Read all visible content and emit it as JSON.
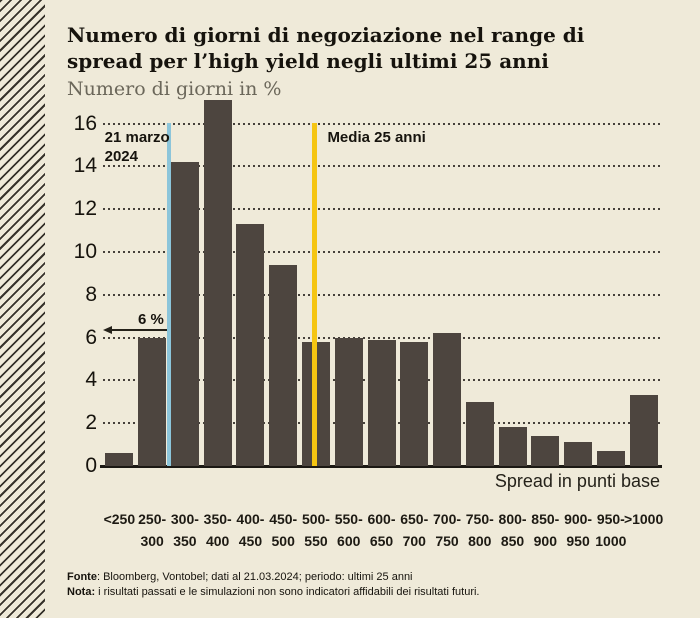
{
  "header": {
    "title_lines": [
      "Numero di giorni di negoziazione nel range di",
      "spread per l’high yield negli ultimi 25 anni"
    ],
    "subtitle": "Numero di giorni in %"
  },
  "chart_data": {
    "type": "bar",
    "title": "Numero di giorni di negoziazione nel range di spread per l’high yield negli ultimi 25 anni",
    "ylabel": "Numero di giorni in %",
    "xlabel": "Spread in punti base",
    "categories": [
      "<250",
      "250-\n300",
      "300-\n350",
      "350-\n400",
      "400-\n450",
      "450-\n500",
      "500-\n550",
      "550-\n600",
      "600-\n650",
      "650-\n700",
      "700-\n750",
      "750-\n800",
      "800-\n850",
      "850-\n900",
      "900-\n950",
      "950-\n1000",
      ">1000"
    ],
    "values": [
      0.6,
      6.0,
      14.2,
      17.1,
      11.3,
      9.4,
      5.8,
      6.0,
      5.9,
      5.8,
      6.2,
      3.0,
      1.8,
      1.4,
      1.1,
      0.7,
      3.3
    ],
    "ylim": [
      0,
      17.5
    ],
    "yticks": [
      0,
      2,
      4,
      6,
      8,
      10,
      12,
      14,
      16
    ],
    "grid": "horizontal-dotted",
    "legend_position": "none",
    "bar_color": "#4d453f",
    "background_color": "#efead9",
    "annotations": [
      {
        "id": "blue-date-line",
        "type": "vline",
        "label": "21 marzo\n2024",
        "position_slots": 2.0,
        "label_x_slots": 0.05,
        "color": "#8cc5da",
        "line_width": 4
      },
      {
        "id": "yellow-mean-line",
        "type": "vline",
        "label": "Media 25 anni",
        "position_slots": 6.47,
        "label_x_slots": 6.85,
        "color": "#f5c512",
        "line_width": 5
      },
      {
        "id": "six-percent-arrow",
        "type": "arrow-left",
        "label": "6 %",
        "y_value": 6.35,
        "from_slot": 0.0,
        "to_slot": 1.95
      }
    ]
  },
  "footer": {
    "fonte_label": "Fonte",
    "fonte_text": ": Bloomberg, Vontobel; dati al 21.03.2024; periodo: ultimi 25 anni",
    "nota_label": "Nota:",
    "nota_text": " i risultati passati e le simulazioni non sono indicatori affidabili dei risultati futuri."
  }
}
